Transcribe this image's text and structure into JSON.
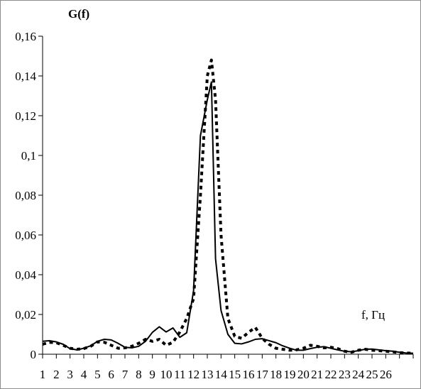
{
  "chart_data": {
    "type": "line",
    "ylabel": "G(f)",
    "xlabel": "f, Гц",
    "ylim": [
      0,
      0.16
    ],
    "xlim": [
      1,
      28
    ],
    "y_ticks": [
      0,
      0.02,
      0.04,
      0.06,
      0.08,
      0.1,
      0.12,
      0.14,
      0.16
    ],
    "y_tick_labels": [
      "0",
      "0,02",
      "0,04",
      "0,06",
      "0,08",
      "0,1",
      "0,12",
      "0,14",
      "0,16"
    ],
    "x_ticks": [
      1,
      2,
      3,
      4,
      5,
      6,
      7,
      8,
      9,
      10,
      11,
      12,
      13,
      14,
      15,
      16,
      17,
      18,
      19,
      20,
      21,
      22,
      23,
      24,
      25,
      26
    ],
    "x_tick_labels": [
      "1",
      "2",
      "3",
      "4",
      "5",
      "6",
      "7",
      "8",
      "9",
      "10",
      "11",
      "12",
      "13",
      "14",
      "15",
      "16",
      "17",
      "18",
      "19",
      "20",
      "21",
      "22",
      "23",
      "24",
      "25",
      "26"
    ],
    "grid": false,
    "legend": "none",
    "series": [
      {
        "style": "solid",
        "color": "#000000",
        "x": [
          1,
          1.5,
          2,
          2.5,
          3,
          3.5,
          4,
          4.5,
          5,
          5.5,
          6,
          6.5,
          7,
          7.5,
          8,
          8.5,
          9,
          9.5,
          10,
          10.5,
          11,
          11.5,
          12,
          12.5,
          13,
          13.3,
          13.6,
          14,
          14.5,
          15,
          15.5,
          16,
          16.5,
          17,
          17.5,
          18,
          18.5,
          19,
          19.5,
          20,
          20.5,
          21,
          21.5,
          22,
          22.5,
          23,
          23.5,
          24,
          24.5,
          25,
          25.5,
          26,
          26.5,
          27,
          27.5,
          28
        ],
        "y": [
          0.0065,
          0.0068,
          0.0062,
          0.005,
          0.0028,
          0.0022,
          0.003,
          0.0042,
          0.0065,
          0.0075,
          0.0072,
          0.0055,
          0.0035,
          0.0032,
          0.004,
          0.0065,
          0.011,
          0.0138,
          0.0112,
          0.0132,
          0.0085,
          0.0108,
          0.032,
          0.11,
          0.128,
          0.137,
          0.048,
          0.022,
          0.01,
          0.0055,
          0.0052,
          0.0062,
          0.0075,
          0.0078,
          0.0068,
          0.0058,
          0.0042,
          0.003,
          0.002,
          0.002,
          0.0028,
          0.0035,
          0.0038,
          0.003,
          0.0022,
          0.0015,
          0.0012,
          0.0018,
          0.0025,
          0.0026,
          0.0022,
          0.0018,
          0.0015,
          0.001,
          0.0006,
          0.0005
        ]
      },
      {
        "style": "dashed",
        "color": "#000000",
        "x": [
          1,
          1.5,
          2,
          2.5,
          3,
          3.5,
          4,
          4.5,
          5,
          5.5,
          6,
          6.5,
          7,
          7.5,
          8,
          8.5,
          9,
          9.5,
          10,
          10.5,
          11,
          11.5,
          12,
          12.5,
          13,
          13.3,
          13.6,
          14,
          14.5,
          15,
          15.5,
          16,
          16.5,
          17,
          17.5,
          18,
          18.5,
          19,
          19.5,
          20,
          20.5,
          21,
          21.5,
          22,
          22.5,
          23,
          23.5,
          24,
          24.5,
          25,
          25.5,
          26,
          26.5,
          27,
          27.5,
          28
        ],
        "y": [
          0.005,
          0.006,
          0.0058,
          0.0045,
          0.003,
          0.0025,
          0.0028,
          0.004,
          0.0062,
          0.006,
          0.0045,
          0.003,
          0.0032,
          0.004,
          0.0055,
          0.0075,
          0.0065,
          0.0075,
          0.0045,
          0.006,
          0.0112,
          0.018,
          0.028,
          0.08,
          0.14,
          0.148,
          0.128,
          0.06,
          0.018,
          0.009,
          0.008,
          0.011,
          0.0135,
          0.008,
          0.005,
          0.003,
          0.0025,
          0.002,
          0.0022,
          0.003,
          0.0045,
          0.004,
          0.0032,
          0.0035,
          0.0028,
          0.0015,
          0.001,
          0.002,
          0.0025,
          0.002,
          0.0018,
          0.0015,
          0.0012,
          0.0008,
          0.0006,
          0.0005
        ]
      }
    ]
  }
}
